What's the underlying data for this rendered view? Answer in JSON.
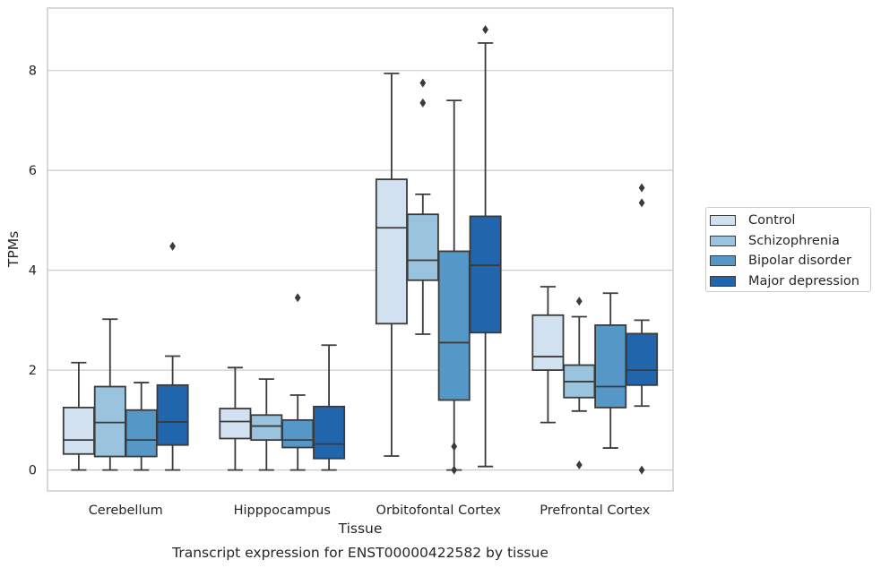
{
  "chart_data": {
    "type": "box",
    "title": "Transcript expression for ENST00000422582 by tissue",
    "xlabel": "Tissue",
    "ylabel": "TPMs",
    "ylim": [
      -0.42,
      9.25
    ],
    "yticks": [
      0,
      2,
      4,
      6,
      8
    ],
    "grid": "horizontal",
    "legend_position": "right",
    "categories": [
      "Cerebellum",
      "Hipppocampus",
      "Orbitofontal Cortex",
      "Prefrontal Cortex"
    ],
    "series": [
      {
        "name": "Control",
        "color": "#d2e1f0",
        "boxes": [
          {
            "whisker_low": 0.0,
            "q1": 0.32,
            "median": 0.6,
            "q3": 1.25,
            "whisker_high": 2.15,
            "outliers": []
          },
          {
            "whisker_low": 0.0,
            "q1": 0.63,
            "median": 0.97,
            "q3": 1.23,
            "whisker_high": 2.05,
            "outliers": []
          },
          {
            "whisker_low": 0.28,
            "q1": 2.93,
            "median": 4.85,
            "q3": 5.82,
            "whisker_high": 7.94,
            "outliers": []
          },
          {
            "whisker_low": 0.95,
            "q1": 2.0,
            "median": 2.27,
            "q3": 3.1,
            "whisker_high": 3.67,
            "outliers": []
          }
        ]
      },
      {
        "name": "Schizophrenia",
        "color": "#9ac3dd",
        "boxes": [
          {
            "whisker_low": 0.0,
            "q1": 0.27,
            "median": 0.95,
            "q3": 1.67,
            "whisker_high": 3.02,
            "outliers": []
          },
          {
            "whisker_low": 0.0,
            "q1": 0.6,
            "median": 0.88,
            "q3": 1.1,
            "whisker_high": 1.82,
            "outliers": []
          },
          {
            "whisker_low": 2.72,
            "q1": 3.8,
            "median": 4.2,
            "q3": 5.12,
            "whisker_high": 5.52,
            "outliers": [
              7.75,
              7.35
            ]
          },
          {
            "whisker_low": 1.18,
            "q1": 1.45,
            "median": 1.77,
            "q3": 2.1,
            "whisker_high": 3.07,
            "outliers": [
              3.38,
              0.1
            ]
          }
        ]
      },
      {
        "name": "Bipolar disorder",
        "color": "#5597c7",
        "boxes": [
          {
            "whisker_low": 0.0,
            "q1": 0.27,
            "median": 0.6,
            "q3": 1.2,
            "whisker_high": 1.75,
            "outliers": []
          },
          {
            "whisker_low": 0.0,
            "q1": 0.45,
            "median": 0.6,
            "q3": 1.0,
            "whisker_high": 1.5,
            "outliers": [
              3.45
            ]
          },
          {
            "whisker_low": 0.0,
            "q1": 1.4,
            "median": 2.55,
            "q3": 4.38,
            "whisker_high": 7.4,
            "outliers": [
              0.47,
              0.0
            ]
          },
          {
            "whisker_low": 0.44,
            "q1": 1.25,
            "median": 1.67,
            "q3": 2.9,
            "whisker_high": 3.54,
            "outliers": []
          }
        ]
      },
      {
        "name": "Major depression",
        "color": "#2166ac",
        "boxes": [
          {
            "whisker_low": 0.0,
            "q1": 0.5,
            "median": 0.96,
            "q3": 1.7,
            "whisker_high": 2.28,
            "outliers": [
              4.48
            ]
          },
          {
            "whisker_low": 0.0,
            "q1": 0.23,
            "median": 0.52,
            "q3": 1.27,
            "whisker_high": 2.5,
            "outliers": []
          },
          {
            "whisker_low": 0.07,
            "q1": 2.75,
            "median": 4.1,
            "q3": 5.08,
            "whisker_high": 8.55,
            "outliers": [
              8.82
            ]
          },
          {
            "whisker_low": 1.28,
            "q1": 1.7,
            "median": 2.0,
            "q3": 2.73,
            "whisker_high": 3.0,
            "outliers": [
              5.65,
              5.35,
              0.0
            ]
          }
        ]
      }
    ]
  }
}
